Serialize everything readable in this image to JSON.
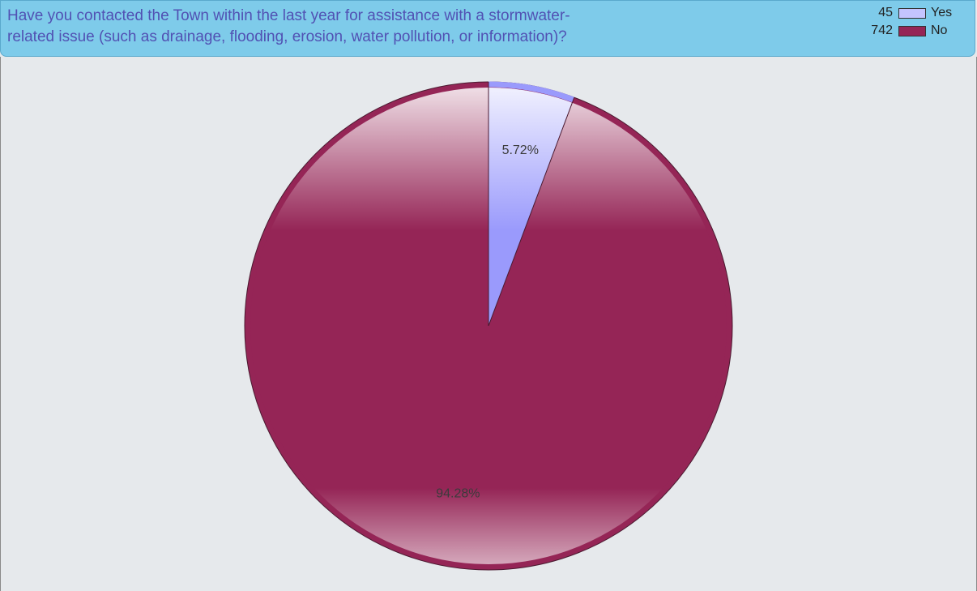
{
  "chart_data": {
    "type": "pie",
    "title": "Have you contacted the Town within the last year for assistance with a stormwater-related issue (such as drainage, flooding, erosion, water pollution, or information)?",
    "title_lines": [
      "Have you contacted the Town within the last year for assistance with a stormwater-",
      "related issue (such as drainage, flooding, erosion, water pollution, or information)?"
    ],
    "slices": [
      {
        "label": "Yes",
        "count": 45,
        "percent": 5.72,
        "percent_label": "5.72%",
        "color": "#9a9afc"
      },
      {
        "label": "No",
        "count": 742,
        "percent": 94.28,
        "percent_label": "94.28%",
        "color": "#952556"
      }
    ],
    "legend_position": "top-right"
  },
  "colors": {
    "header_bg": "#7ecbea",
    "plot_bg": "#e6e9ec",
    "title_text": "#5151b3"
  }
}
